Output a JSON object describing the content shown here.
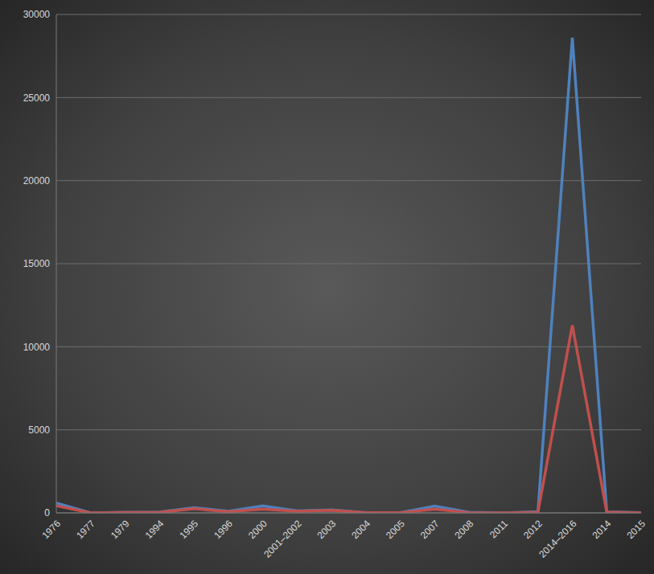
{
  "chart_data": {
    "type": "line",
    "categories": [
      "1976",
      "1977",
      "1979",
      "1994",
      "1995",
      "1996",
      "2000",
      "2001–2002",
      "2003",
      "2004",
      "2005",
      "2007",
      "2008",
      "2011",
      "2012",
      "2014–2016",
      "2014",
      "2015"
    ],
    "series": [
      {
        "color": "#4f81bd",
        "values": [
          602,
          1,
          34,
          52,
          315,
          100,
          425,
          125,
          178,
          17,
          12,
          413,
          32,
          1,
          77,
          28600,
          66,
          10
        ]
      },
      {
        "color": "#c0504d",
        "values": [
          431,
          1,
          22,
          31,
          254,
          70,
          224,
          98,
          157,
          7,
          10,
          224,
          15,
          1,
          36,
          11300,
          49,
          5
        ]
      }
    ],
    "ylim": [
      0,
      30000
    ],
    "yticks": [
      0,
      5000,
      10000,
      15000,
      20000,
      25000,
      30000
    ],
    "grid": true
  }
}
